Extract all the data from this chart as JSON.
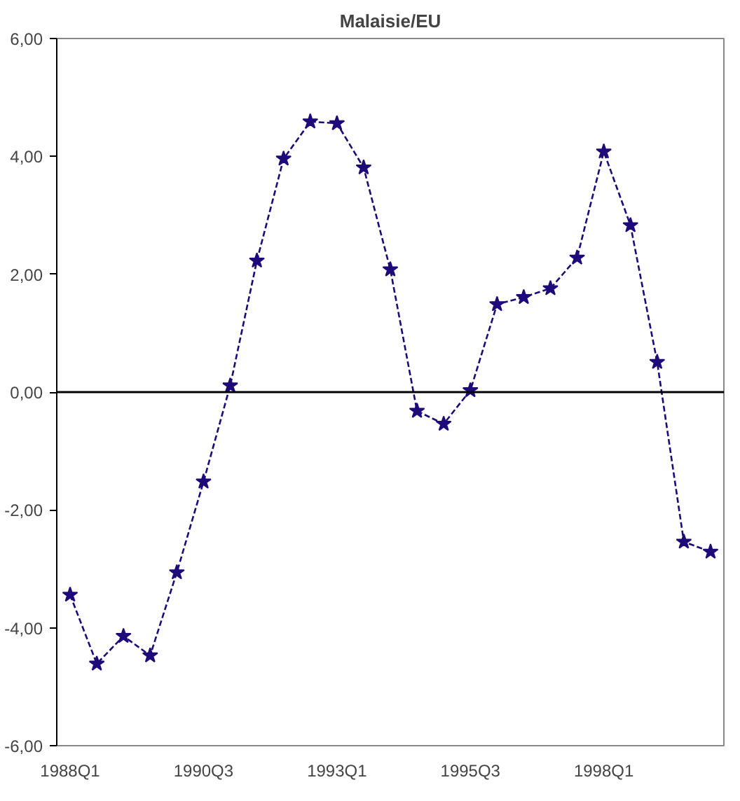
{
  "chart_data": {
    "type": "line",
    "title": "Malaisie/EU",
    "categories": [
      "1988Q1",
      null,
      null,
      null,
      null,
      "1990Q3",
      null,
      null,
      null,
      null,
      "1993Q1",
      null,
      null,
      null,
      null,
      "1995Q3",
      null,
      null,
      null,
      null,
      "1998Q1",
      null,
      null,
      null,
      null
    ],
    "series": [
      {
        "color": "#1f0a7a",
        "values": [
          -3.44,
          -4.61,
          -4.14,
          -4.47,
          -3.06,
          -1.52,
          0.11,
          2.23,
          3.96,
          4.59,
          4.56,
          3.81,
          2.08,
          -0.32,
          -0.54,
          0.03,
          1.49,
          1.61,
          1.76,
          2.28,
          4.08,
          2.83,
          0.51,
          -2.54,
          -2.71
        ]
      }
    ],
    "ylim": [
      -6,
      6
    ],
    "yticks": [
      {
        "value": -6,
        "label": "-6,00"
      },
      {
        "value": -4,
        "label": "-4,00"
      },
      {
        "value": -2,
        "label": "-2,00"
      },
      {
        "value": 0,
        "label": "0,00"
      },
      {
        "value": 2,
        "label": "2,00"
      },
      {
        "value": 4,
        "label": "4,00"
      },
      {
        "value": 6,
        "label": "6,00"
      }
    ],
    "ref_lines": [
      {
        "axis": "y",
        "value": 0,
        "color": "#000000"
      }
    ],
    "marker": "star",
    "line_style": "dashed",
    "grid": false
  }
}
